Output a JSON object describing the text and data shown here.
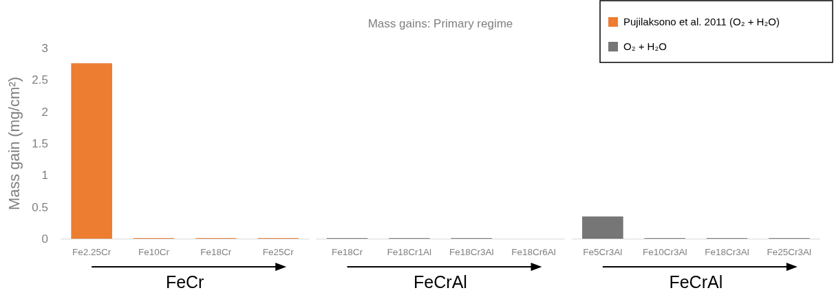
{
  "chart_data": [
    {
      "type": "bar",
      "ylabel": "Mass gain (mg/cm²)",
      "categories": [
        "Fe2.25Cr",
        "Fe10Cr",
        "Fe18Cr",
        "Fe25Cr"
      ],
      "ylim": [
        0,
        3
      ],
      "yticks": [
        0,
        0.5,
        1,
        1.5,
        2,
        2.5,
        3
      ],
      "series": [
        {
          "color": "#ed7d31",
          "values": [
            2.76,
            0.01,
            0.01,
            0.01
          ]
        }
      ],
      "annotations": [
        "FeCr"
      ]
    },
    {
      "type": "bar",
      "title": "Mass gains: Primary regime",
      "categories": [
        "Fe18Cr",
        "Fe18Cr1Al",
        "Fe18Cr3Al",
        "Fe18Cr6Al"
      ],
      "ylim": [
        0,
        3
      ],
      "tick_labels": "x",
      "series": [
        {
          "color": "#767676",
          "values": [
            0.01,
            0.01,
            0.01,
            null
          ]
        }
      ],
      "annotations": [
        "FeCrAl"
      ]
    },
    {
      "type": "bar",
      "categories": [
        "Fe5Cr3Al",
        "Fe10Cr3Al",
        "Fe18Cr3Al",
        "Fe25Cr3Al"
      ],
      "ylim": [
        0,
        3
      ],
      "tick_labels": "x",
      "legend": "top",
      "series": [
        {
          "name": "Pujilaksono et al. 2011 (O₂ + H₂O)",
          "color": "#ed7d31",
          "values": [
            null,
            null,
            null,
            null
          ]
        },
        {
          "name": "O₂ + H₂O",
          "color": "#767676",
          "values": [
            0.35,
            0.01,
            0.01,
            0.01
          ]
        }
      ],
      "annotations": [
        "FeCrAl"
      ]
    }
  ]
}
